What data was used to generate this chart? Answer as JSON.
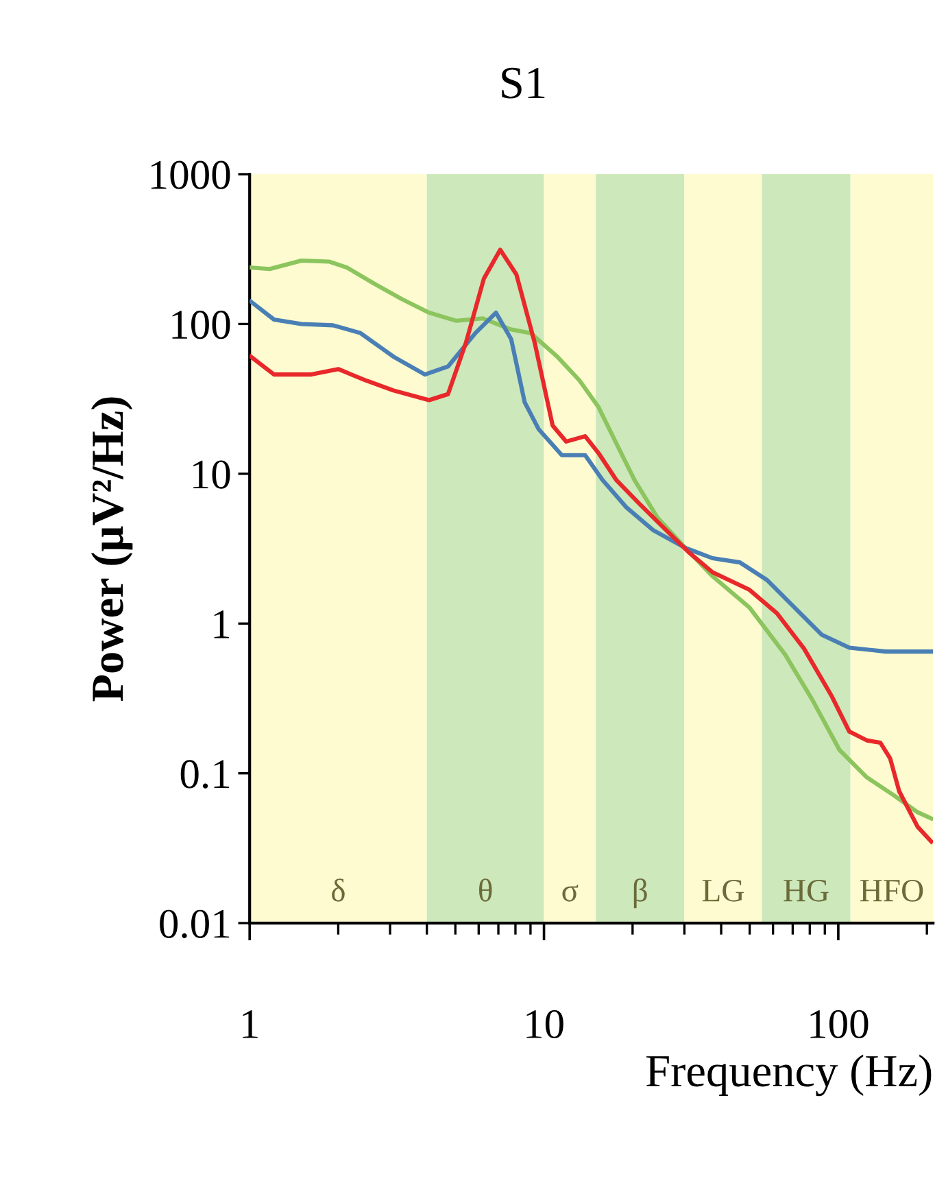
{
  "chart_data": {
    "type": "line",
    "title": "S1",
    "xlabel": "Frequency (Hz)",
    "ylabel": "Power (μV²/Hz)",
    "log": "xy",
    "grid": false,
    "legend": false,
    "xlim": [
      1,
      210
    ],
    "xticks": [
      1,
      10,
      100
    ],
    "ylim": [
      0.01,
      1000
    ],
    "yticks": [
      0.01,
      0.1,
      1,
      10,
      100,
      1000
    ],
    "bands": [
      {
        "axis": "x",
        "from": 1,
        "to": 4,
        "label": "δ",
        "color": "#fdfbcf"
      },
      {
        "axis": "x",
        "from": 4,
        "to": 10,
        "label": "θ",
        "color": "#cde8bb"
      },
      {
        "axis": "x",
        "from": 10,
        "to": 15,
        "label": "σ",
        "color": "#fdfbcf"
      },
      {
        "axis": "x",
        "from": 15,
        "to": 30,
        "label": "β",
        "color": "#cde8bb"
      },
      {
        "axis": "x",
        "from": 30,
        "to": 55,
        "label": "LG",
        "color": "#fdfbcf"
      },
      {
        "axis": "x",
        "from": 55,
        "to": 110,
        "label": "HG",
        "color": "#cde8bb"
      },
      {
        "axis": "x",
        "from": 110,
        "to": 210,
        "label": "HFO",
        "color": "#fdfbcf"
      }
    ],
    "series": [
      {
        "color": "#8cc45e",
        "x": [
          1.01,
          1.17,
          1.5,
          1.86,
          2.14,
          2.65,
          3.28,
          4.07,
          5.04,
          6.2,
          7.7,
          9.0,
          11.1,
          13.2,
          15.3,
          17.6,
          20.3,
          24.3,
          30.2,
          37.4,
          49.9,
          66,
          81.6,
          101,
          125,
          155,
          186,
          207
        ],
        "values": [
          238,
          233,
          265,
          261,
          238,
          186,
          147,
          119,
          105,
          109,
          92,
          87,
          60.5,
          42,
          28,
          16,
          9.1,
          5.1,
          3.2,
          2.07,
          1.28,
          0.62,
          0.31,
          0.143,
          0.094,
          0.071,
          0.055,
          0.05
        ]
      },
      {
        "color": "#4a7fb5",
        "x": [
          1.01,
          1.21,
          1.5,
          1.92,
          2.38,
          3.08,
          3.94,
          4.72,
          5.85,
          6.87,
          7.74,
          8.6,
          9.6,
          11.5,
          13.8,
          15.8,
          19.0,
          23.5,
          30.2,
          37.4,
          46.3,
          57.3,
          71,
          88,
          109,
          145,
          207
        ],
        "values": [
          141,
          107,
          100,
          98,
          87,
          60.5,
          46,
          52,
          87,
          119,
          79,
          30,
          19.8,
          13.3,
          13.3,
          9.1,
          6.0,
          4.2,
          3.2,
          2.73,
          2.56,
          1.95,
          1.28,
          0.84,
          0.69,
          0.65,
          0.65
        ]
      },
      {
        "color": "#e8282a",
        "x": [
          1.01,
          1.21,
          1.62,
          2.0,
          2.48,
          3.08,
          4.07,
          4.72,
          5.43,
          6.25,
          7.1,
          8.06,
          9.3,
          10.7,
          11.9,
          13.8,
          15.3,
          17.6,
          21.1,
          25.1,
          31,
          37.4,
          49.9,
          61.9,
          76.5,
          94.8,
          109,
          125,
          139,
          150,
          161,
          186,
          207
        ],
        "values": [
          60.5,
          46,
          46,
          50,
          42,
          36,
          31,
          34,
          75,
          201,
          313,
          214,
          75,
          21,
          16.4,
          17.8,
          13.8,
          9.1,
          6.3,
          4.5,
          3.0,
          2.2,
          1.68,
          1.17,
          0.68,
          0.33,
          0.19,
          0.166,
          0.16,
          0.126,
          0.076,
          0.044,
          0.035
        ]
      }
    ]
  }
}
